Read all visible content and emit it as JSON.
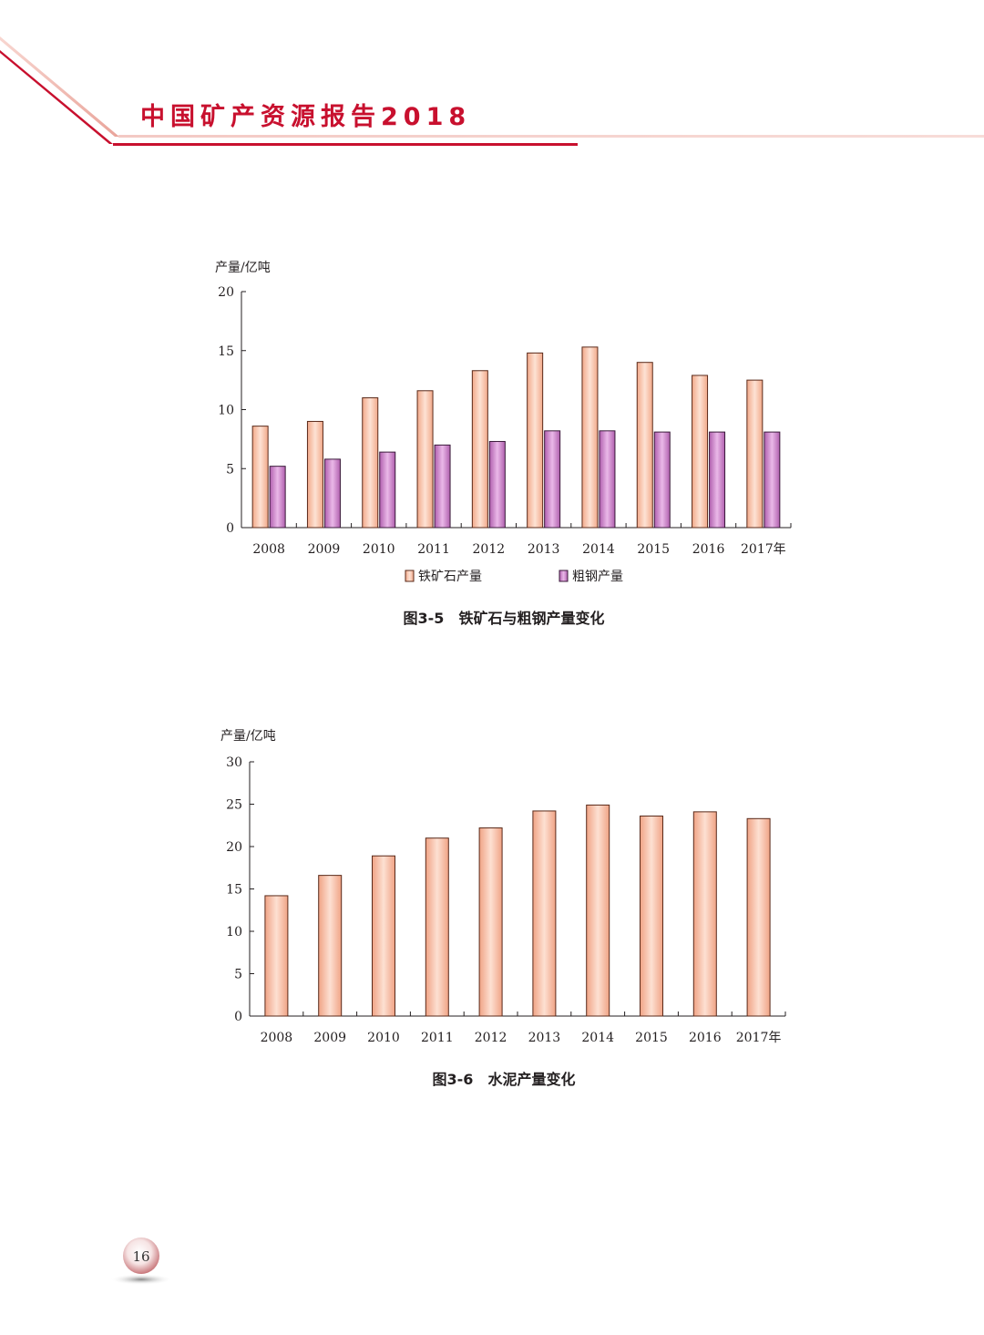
{
  "header": {
    "title": "中国矿产资源报告2018"
  },
  "page_number": "16",
  "colors": {
    "accent": "#c8102e",
    "iron_fill": "#f7c2a6",
    "steel_fill": "#c77fc4",
    "cement_fill": "#f6b9a0"
  },
  "chart_data": [
    {
      "type": "bar",
      "caption": "图3-5　铁矿石与粗钢产量变化",
      "ylabel": "产量/亿吨",
      "categories": [
        "2008",
        "2009",
        "2010",
        "2011",
        "2012",
        "2013",
        "2014",
        "2015",
        "2016",
        "2017年"
      ],
      "series": [
        {
          "name": "铁矿石产量",
          "values": [
            8.6,
            9.0,
            11.0,
            11.6,
            13.3,
            14.8,
            15.3,
            14.0,
            12.9,
            12.5
          ]
        },
        {
          "name": "粗钢产量",
          "values": [
            5.2,
            5.8,
            6.4,
            7.0,
            7.3,
            8.2,
            8.2,
            8.1,
            8.1,
            8.1
          ]
        }
      ],
      "yticks": [
        "0",
        "5",
        "10",
        "15",
        "20"
      ],
      "ylim": [
        0,
        20
      ],
      "legend": "bottom"
    },
    {
      "type": "bar",
      "caption": "图3-6　水泥产量变化",
      "ylabel": "产量/亿吨",
      "categories": [
        "2008",
        "2009",
        "2010",
        "2011",
        "2012",
        "2013",
        "2014",
        "2015",
        "2016",
        "2017年"
      ],
      "series": [
        {
          "values": [
            14.2,
            16.6,
            18.9,
            21.0,
            22.2,
            24.2,
            24.9,
            23.6,
            24.1,
            23.3
          ]
        }
      ],
      "yticks": [
        "0",
        "5",
        "10",
        "15",
        "20",
        "25",
        "30"
      ],
      "ylim": [
        0,
        30
      ]
    }
  ]
}
